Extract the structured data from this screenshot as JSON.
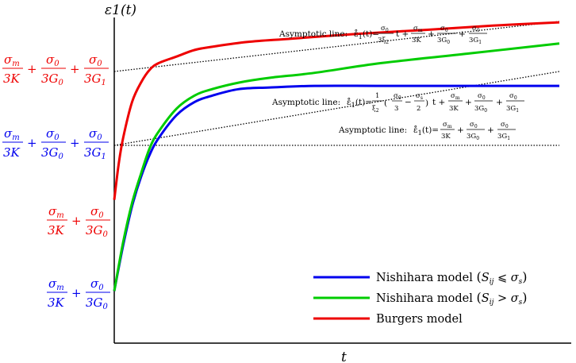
{
  "chart_data": {
    "type": "line",
    "ylabel": "ε1(t)",
    "xlabel": "t",
    "xlim": [
      0,
      1
    ],
    "ylim": [
      0,
      1
    ],
    "grid": false,
    "legend_position": "bottom-right",
    "series": [
      {
        "name": "Nishihara model (Sij ⩽ σs)",
        "color": "#0000ee",
        "x": [
          0,
          0.02,
          0.04,
          0.06,
          0.08,
          0.1,
          0.14,
          0.18,
          0.22,
          0.28,
          0.35,
          0.45,
          0.6,
          0.8,
          1.0
        ],
        "y": [
          0.16,
          0.3,
          0.42,
          0.51,
          0.58,
          0.63,
          0.7,
          0.74,
          0.76,
          0.78,
          0.785,
          0.79,
          0.79,
          0.79,
          0.79
        ]
      },
      {
        "name": "Nishihara model (Sij > σs)",
        "color": "#00cc00",
        "x": [
          0,
          0.02,
          0.04,
          0.06,
          0.08,
          0.1,
          0.14,
          0.18,
          0.22,
          0.28,
          0.35,
          0.45,
          0.6,
          0.8,
          1.0
        ],
        "y": [
          0.16,
          0.31,
          0.43,
          0.52,
          0.6,
          0.65,
          0.72,
          0.76,
          0.78,
          0.8,
          0.815,
          0.83,
          0.86,
          0.89,
          0.92
        ]
      },
      {
        "name": "Burgers model",
        "color": "#ee0000",
        "x": [
          0,
          0.01,
          0.02,
          0.04,
          0.06,
          0.08,
          0.1,
          0.14,
          0.18,
          0.22,
          0.3,
          0.4,
          0.55,
          0.7,
          0.85,
          1.0
        ],
        "y": [
          0.44,
          0.55,
          0.63,
          0.74,
          0.8,
          0.84,
          0.86,
          0.88,
          0.9,
          0.91,
          0.925,
          0.935,
          0.95,
          0.962,
          0.975,
          0.985
        ]
      }
    ],
    "asymptotes": [
      {
        "label": "Asymptotic line:",
        "formula": "ε̊1(t) = σ0/(3ξ2) t + σm/3K + σ0/3G0 + σ0/3G1"
      },
      {
        "label": "Asymptotic line:",
        "formula": "ε̊1(t) = 1/ξ2 (σ0/3 − σs/2) t + σm/3K + σ0/3G0 + σ0/3G1"
      },
      {
        "label": "Asymptotic line:",
        "formula": "ε̊1(t) = σm/3K + σ0/3G0 + σ0/3G1"
      }
    ],
    "y_annotations": [
      {
        "text": "σm/3K + σ0/3G0 + σ0/3G1",
        "color": "#ee0000"
      },
      {
        "text": "σm/3K + σ0/3G0 + σ0/3G1",
        "color": "#0000ee"
      },
      {
        "text": "σm/3K + σ0/3G0",
        "color": "#ee0000"
      },
      {
        "text": "σm/3K + σ0/3G0",
        "color": "#0000ee"
      }
    ]
  }
}
